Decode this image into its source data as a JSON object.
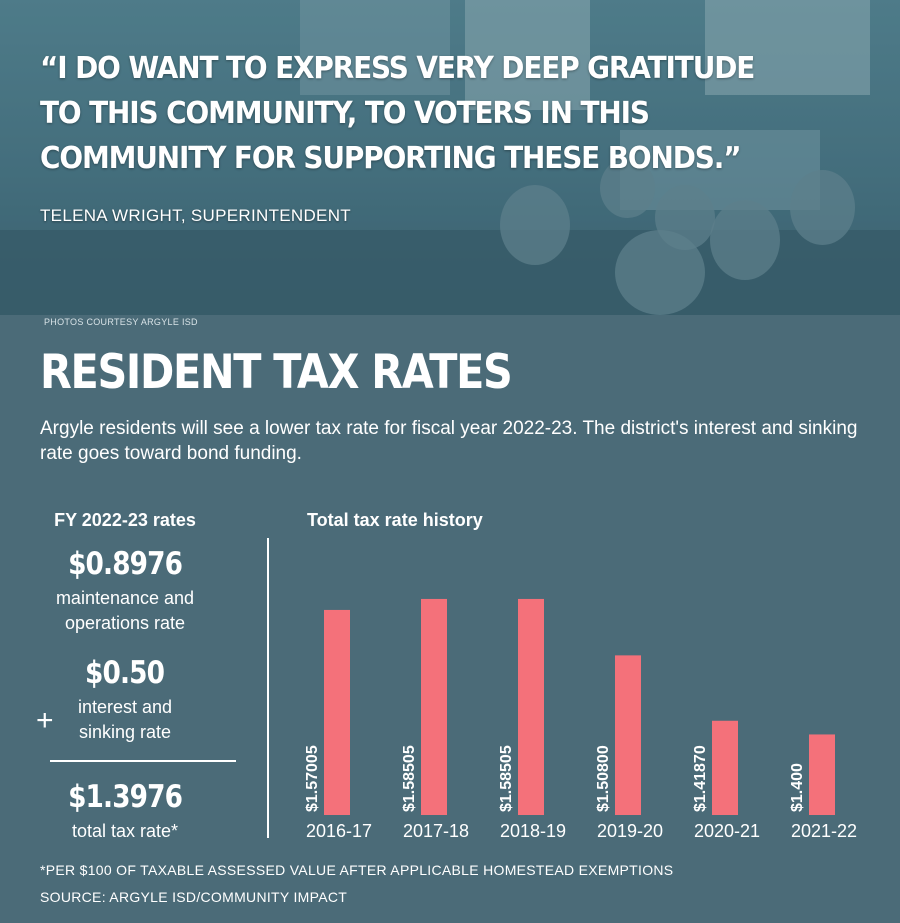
{
  "header": {
    "quote": "“I DO WANT TO EXPRESS VERY DEEP GRATITUDE TO THIS COMMUNITY, TO VOTERS IN THIS COMMUNITY FOR SUPPORTING THESE BONDS.”",
    "attribution": "TELENA WRIGHT, SUPERINTENDENT",
    "photo_credit": "PHOTOS COURTESY ARGYLE ISD"
  },
  "title": "RESIDENT TAX RATES",
  "intro": "Argyle residents will  see a lower tax rate for fiscal year 2022-23. The district's interest and sinking rate goes toward bond funding.",
  "rates": {
    "heading": "FY 2022-23 rates",
    "mo_value": "$0.8976",
    "mo_label_1": "maintenance and",
    "mo_label_2": "operations rate",
    "is_value": "$0.50",
    "is_label_1": "interest and",
    "is_label_2": "sinking rate",
    "plus": "+",
    "total_value": "$1.3976",
    "total_label": "total tax rate*"
  },
  "chart_data": {
    "type": "bar",
    "title": "Total tax rate history",
    "categories": [
      "2016-17",
      "2017-18",
      "2018-19",
      "2019-20",
      "2020-21",
      "2021-22"
    ],
    "values": [
      1.57005,
      1.58505,
      1.58505,
      1.508,
      1.4187,
      1.4
    ],
    "data_labels": [
      "$1.57005",
      "$1.58505",
      "$1.58505",
      "$1.50800",
      "$1.41870",
      "$1.400"
    ],
    "bar_color": "#f4717a",
    "ylim": [
      1.29,
      1.6
    ]
  },
  "footnotes": {
    "note": "*PER $100 OF TAXABLE ASSESSED VALUE AFTER APPLICABLE HOMESTEAD EXEMPTIONS",
    "source": "SOURCE: ARGYLE ISD/COMMUNITY IMPACT"
  }
}
